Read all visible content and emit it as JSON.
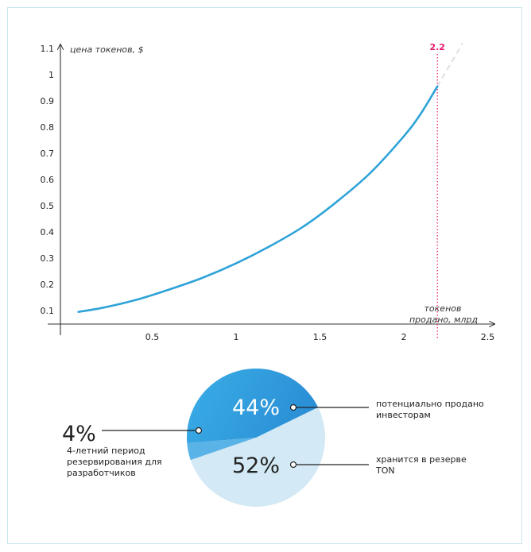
{
  "chart_data": [
    {
      "type": "line",
      "ylabel": "цена токенов, $",
      "xlabel_lines": [
        "токенов",
        "продано, млрд"
      ],
      "x_ticks": [
        "0.5",
        "1",
        "1.5",
        "2",
        "2.5"
      ],
      "y_ticks": [
        "0.1",
        "0.2",
        "0.3",
        "0.4",
        "0.5",
        "0.6",
        "0.7",
        "0.8",
        "0.9",
        "1",
        "1.1"
      ],
      "xlim": [
        0,
        2.5
      ],
      "ylim": [
        0,
        1.1
      ],
      "marker": {
        "x": 2.2,
        "label": "2.2"
      },
      "series": [
        {
          "values_x": [
            0.06,
            0.2,
            0.4,
            0.6,
            0.8,
            1.0,
            1.2,
            1.4,
            1.6,
            1.8,
            2.0,
            2.1,
            2.2
          ],
          "values_y": [
            0.095,
            0.11,
            0.14,
            0.18,
            0.225,
            0.28,
            0.345,
            0.42,
            0.515,
            0.625,
            0.765,
            0.85,
            0.955
          ]
        }
      ],
      "extrapolation": {
        "values_x": [
          2.2,
          2.35
        ],
        "values_y": [
          0.955,
          1.12
        ]
      },
      "colors": {
        "line": "#2fa3d8",
        "marker": "#e5186a",
        "extrapolation": "#dfdfe6"
      }
    },
    {
      "type": "pie",
      "slices": [
        {
          "value": 44,
          "label": "44%",
          "annotation": [
            "потенциально продано",
            "инвесторам"
          ],
          "color": "#2f9ee0"
        },
        {
          "value": 52,
          "label": "52%",
          "annotation": [
            "хранится в резерве",
            "TON"
          ],
          "color": "#d3e9f5"
        },
        {
          "value": 4,
          "label": "4%",
          "annotation": [
            "4-летний период",
            "резервирования для",
            "разработчиков"
          ],
          "color": "#5ab3e6"
        }
      ]
    }
  ]
}
